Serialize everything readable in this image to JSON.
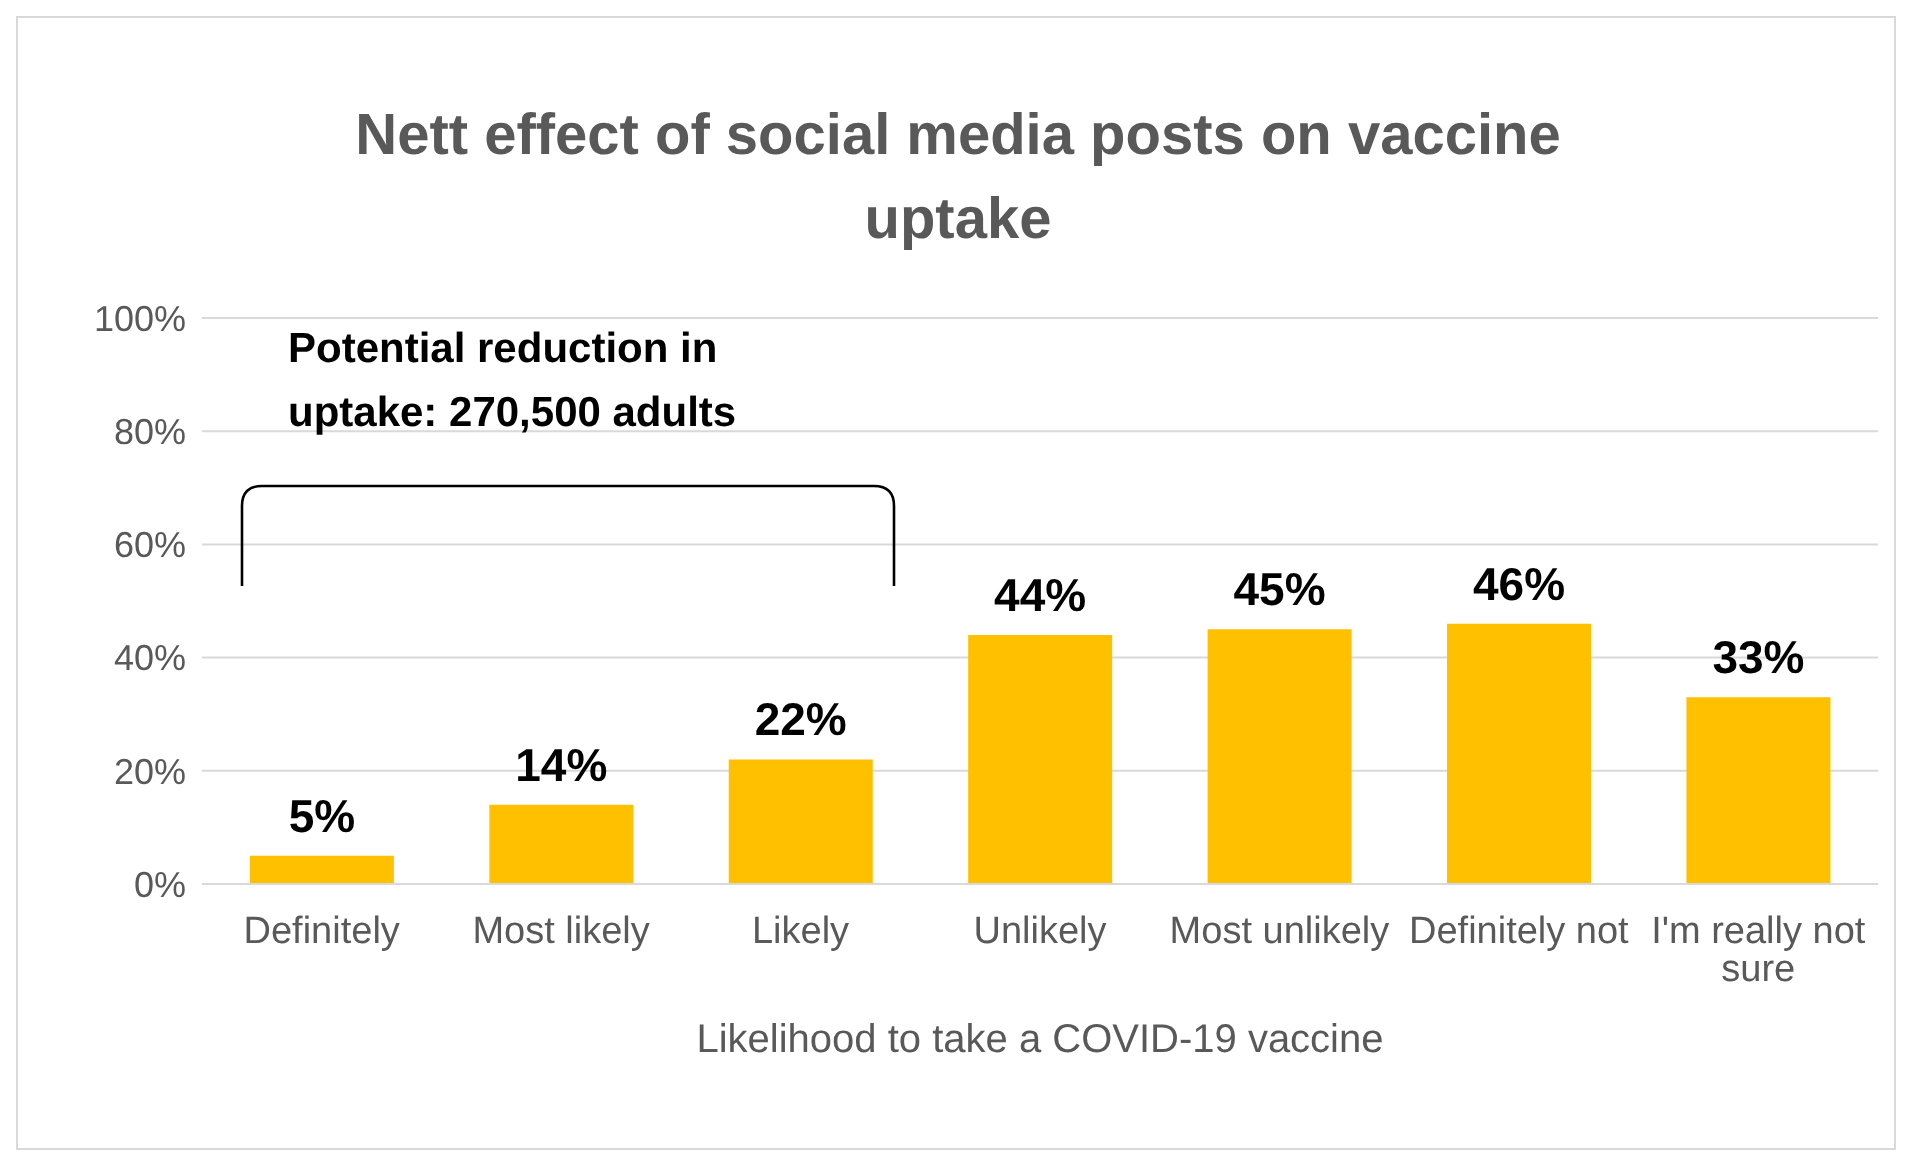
{
  "chart_data": {
    "type": "bar",
    "title": "Nett effect of social media posts on vaccine uptake",
    "xlabel": "Likelihood to take a COVID-19 vaccine",
    "categories": [
      "Definitely",
      "Most likely",
      "Likely",
      "Unlikely",
      "Most unlikely",
      "Definitely not",
      "I'm really not sure"
    ],
    "values": [
      5,
      14,
      22,
      44,
      45,
      46,
      33
    ],
    "color": "#ffc000",
    "value_labels": [
      "5%",
      "14%",
      "22%",
      "44%",
      "45%",
      "46%",
      "33%"
    ],
    "ylim": [
      0,
      100
    ],
    "yticks": [
      {
        "value": 0,
        "label": "0%"
      },
      {
        "value": 20,
        "label": "20%"
      },
      {
        "value": 40,
        "label": "40%"
      },
      {
        "value": 60,
        "label": "60%"
      },
      {
        "value": 80,
        "label": "80%"
      },
      {
        "value": 100,
        "label": "100%"
      }
    ],
    "grid": "y",
    "annotations": [
      "Potential reduction in uptake: 270,500 adults"
    ]
  }
}
